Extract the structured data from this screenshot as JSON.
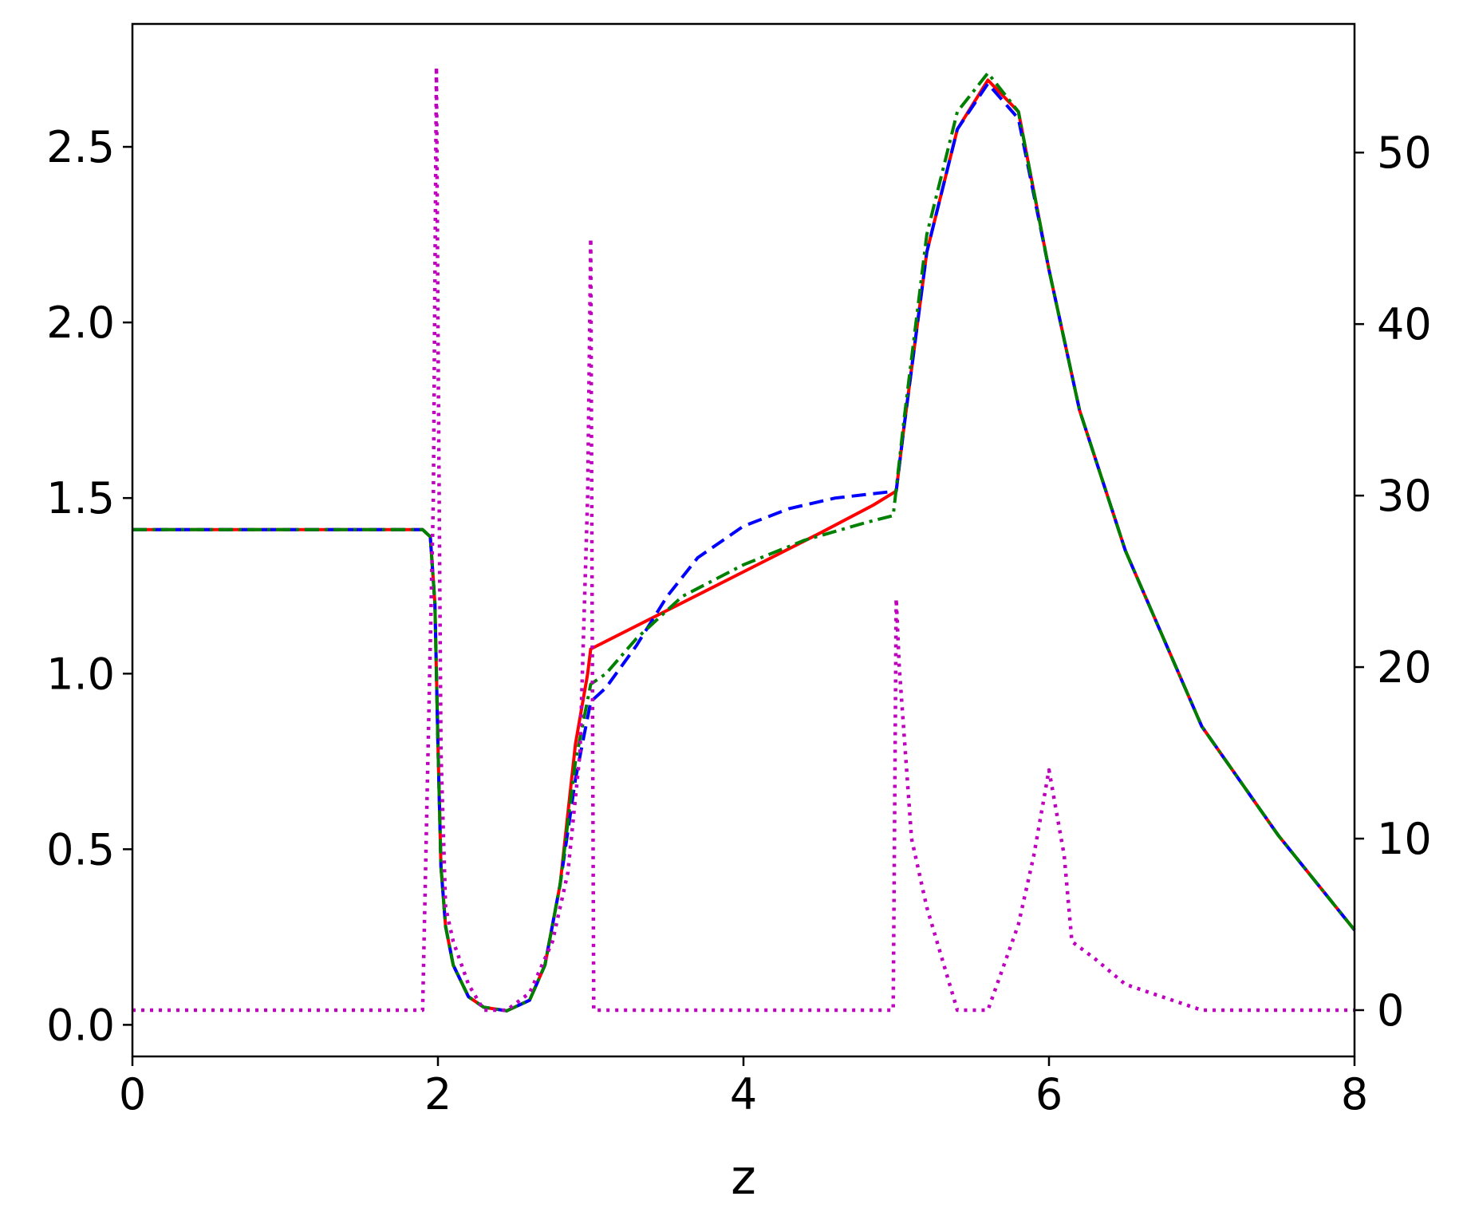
{
  "chart_data": {
    "type": "line",
    "title": "",
    "xlabel": "z",
    "ylabel": "",
    "ylabel_right": "",
    "xlim": [
      0,
      8
    ],
    "ylim": [
      -0.09,
      2.85
    ],
    "ylim_right": [
      -2.7,
      57.5
    ],
    "xticks": [
      0,
      2,
      4,
      6,
      8
    ],
    "yticks": [
      0.0,
      0.5,
      1.0,
      1.5,
      2.0,
      2.5
    ],
    "yticks_right": [
      0,
      10,
      20,
      30,
      40,
      50
    ],
    "xtick_labels": [
      "0",
      "2",
      "4",
      "6",
      "8"
    ],
    "ytick_labels": [
      "0.0",
      "0.5",
      "1.0",
      "1.5",
      "2.0",
      "2.5"
    ],
    "ytick_right_labels": [
      "0",
      "10",
      "20",
      "30",
      "40",
      "50"
    ],
    "grid": false,
    "legend": "none",
    "series": [
      {
        "axis": "left",
        "color": "#ff0000",
        "style": "solid",
        "x": [
          0,
          1.9,
          1.95,
          1.98,
          2.0,
          2.02,
          2.05,
          2.1,
          2.2,
          2.3,
          2.45,
          2.6,
          2.7,
          2.8,
          2.9,
          2.98,
          3.0,
          3.5,
          4.0,
          4.5,
          4.85,
          5.0,
          5.05,
          5.2,
          5.4,
          5.6,
          5.8,
          6.0,
          6.2,
          6.5,
          7.0,
          7.5,
          8.0
        ],
        "y": [
          1.41,
          1.41,
          1.39,
          1.2,
          0.8,
          0.45,
          0.28,
          0.17,
          0.08,
          0.05,
          0.04,
          0.07,
          0.17,
          0.4,
          0.8,
          1.0,
          1.07,
          1.18,
          1.29,
          1.4,
          1.48,
          1.52,
          1.7,
          2.2,
          2.55,
          2.69,
          2.6,
          2.15,
          1.75,
          1.35,
          0.85,
          0.54,
          0.27
        ]
      },
      {
        "axis": "left",
        "color": "#0000ff",
        "style": "dashed",
        "x": [
          0,
          1.9,
          1.95,
          1.98,
          2.0,
          2.02,
          2.05,
          2.1,
          2.2,
          2.3,
          2.45,
          2.6,
          2.7,
          2.8,
          2.9,
          3.0,
          3.1,
          3.3,
          3.5,
          3.7,
          4.0,
          4.3,
          4.6,
          5.0,
          5.05,
          5.2,
          5.4,
          5.6,
          5.8,
          6.0,
          6.2,
          6.5,
          7.0,
          7.5,
          8.0
        ],
        "y": [
          1.41,
          1.41,
          1.39,
          1.2,
          0.8,
          0.45,
          0.28,
          0.17,
          0.08,
          0.05,
          0.04,
          0.07,
          0.17,
          0.4,
          0.7,
          0.92,
          0.96,
          1.08,
          1.22,
          1.33,
          1.42,
          1.47,
          1.5,
          1.52,
          1.7,
          2.2,
          2.55,
          2.68,
          2.58,
          2.15,
          1.75,
          1.35,
          0.85,
          0.54,
          0.27
        ]
      },
      {
        "axis": "left",
        "color": "#008000",
        "style": "dashdot",
        "x": [
          0,
          1.9,
          1.95,
          1.98,
          2.0,
          2.02,
          2.05,
          2.1,
          2.2,
          2.3,
          2.45,
          2.6,
          2.7,
          2.8,
          2.9,
          3.0,
          3.1,
          3.3,
          3.6,
          4.0,
          4.4,
          4.8,
          4.98,
          5.05,
          5.2,
          5.4,
          5.6,
          5.8,
          6.0,
          6.2,
          6.5,
          7.0,
          7.5,
          8.0
        ],
        "y": [
          1.41,
          1.41,
          1.39,
          1.2,
          0.8,
          0.45,
          0.28,
          0.17,
          0.08,
          0.05,
          0.04,
          0.07,
          0.17,
          0.4,
          0.75,
          0.97,
          1.0,
          1.1,
          1.22,
          1.31,
          1.38,
          1.43,
          1.45,
          1.72,
          2.25,
          2.6,
          2.71,
          2.6,
          2.15,
          1.75,
          1.35,
          0.85,
          0.54,
          0.27
        ]
      },
      {
        "axis": "right",
        "color": "#bf00bf",
        "style": "dotted",
        "x": [
          0,
          1.9,
          1.97,
          1.99,
          2.0,
          2.02,
          2.05,
          2.1,
          2.2,
          2.3,
          2.45,
          2.6,
          2.75,
          2.85,
          2.93,
          2.98,
          3.0,
          3.02,
          3.5,
          4.0,
          4.5,
          4.98,
          5.0,
          5.02,
          5.1,
          5.2,
          5.4,
          5.6,
          5.8,
          5.9,
          6.0,
          6.1,
          6.15,
          6.3,
          6.5,
          7.0,
          7.5,
          8.0
        ],
        "y": [
          0,
          0,
          30,
          55,
          40,
          15,
          6,
          4,
          1.5,
          0,
          0,
          1,
          4,
          8,
          15,
          30,
          45,
          0,
          0,
          0,
          0,
          0,
          24,
          20,
          10,
          6,
          0,
          0,
          5,
          9,
          14,
          9,
          4,
          3,
          1.5,
          0,
          0,
          0
        ]
      }
    ]
  }
}
